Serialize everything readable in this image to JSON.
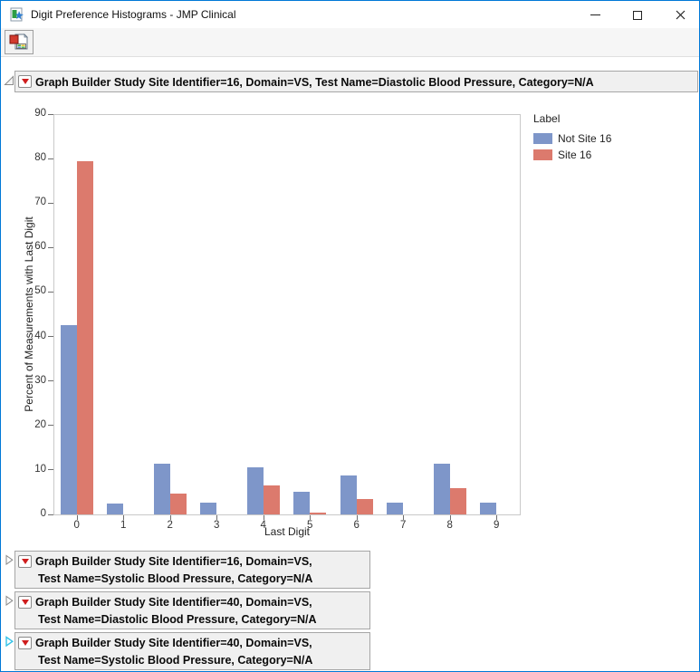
{
  "window": {
    "title": "Digit Preference Histograms - JMP Clinical"
  },
  "icons": {
    "app": "jmp-clinical-app-icon",
    "minimize": "minimize-icon",
    "maximize": "maximize-icon",
    "close": "close-icon",
    "toolbar_button": "data-table-icon",
    "expanded_node": "disclosure-open-icon",
    "collapsed_node": "disclosure-closed-icon",
    "outline_menu": "red-triangle-menu-icon"
  },
  "colors": {
    "accent_border": "#0078D7",
    "header_bg": "#F0F0F0",
    "header_border": "#A6A6A6",
    "series_blue": "#7E96C9",
    "series_red": "#DC7A6D",
    "focused_disclosure": "#35C3E8"
  },
  "outlines": [
    {
      "expanded": true,
      "lines": [
        "Graph Builder Study Site Identifier=16, Domain=VS, Test Name=Diastolic Blood Pressure, Category=N/A"
      ]
    },
    {
      "expanded": false,
      "lines": [
        "Graph Builder Study Site Identifier=16, Domain=VS,",
        "Test Name=Systolic Blood Pressure, Category=N/A"
      ]
    },
    {
      "expanded": false,
      "lines": [
        "Graph Builder Study Site Identifier=40, Domain=VS,",
        "Test Name=Diastolic Blood Pressure, Category=N/A"
      ]
    },
    {
      "expanded": false,
      "focused": true,
      "lines": [
        "Graph Builder Study Site Identifier=40, Domain=VS,",
        "Test Name=Systolic Blood Pressure, Category=N/A"
      ]
    }
  ],
  "chart_data": {
    "type": "bar",
    "categories": [
      "0",
      "1",
      "2",
      "3",
      "4",
      "5",
      "6",
      "7",
      "8",
      "9"
    ],
    "series": [
      {
        "name": "Not Site 16",
        "color": "#7E96C9",
        "values": [
          42.5,
          2.5,
          11.5,
          2.7,
          10.5,
          5.0,
          8.8,
          2.7,
          11.5,
          2.7
        ]
      },
      {
        "name": "Site 16",
        "color": "#DC7A6D",
        "values": [
          79.5,
          0,
          4.6,
          0,
          6.5,
          0.4,
          3.5,
          0,
          6.0,
          0
        ]
      }
    ],
    "xlabel": "Last Digit",
    "ylabel": "Percent of Measurements with Last Digit",
    "ylim": [
      0,
      90
    ],
    "yticks": [
      0,
      10,
      20,
      30,
      40,
      50,
      60,
      70,
      80,
      90
    ],
    "legend_title": "Label",
    "legend_position": "right",
    "grid": false
  }
}
